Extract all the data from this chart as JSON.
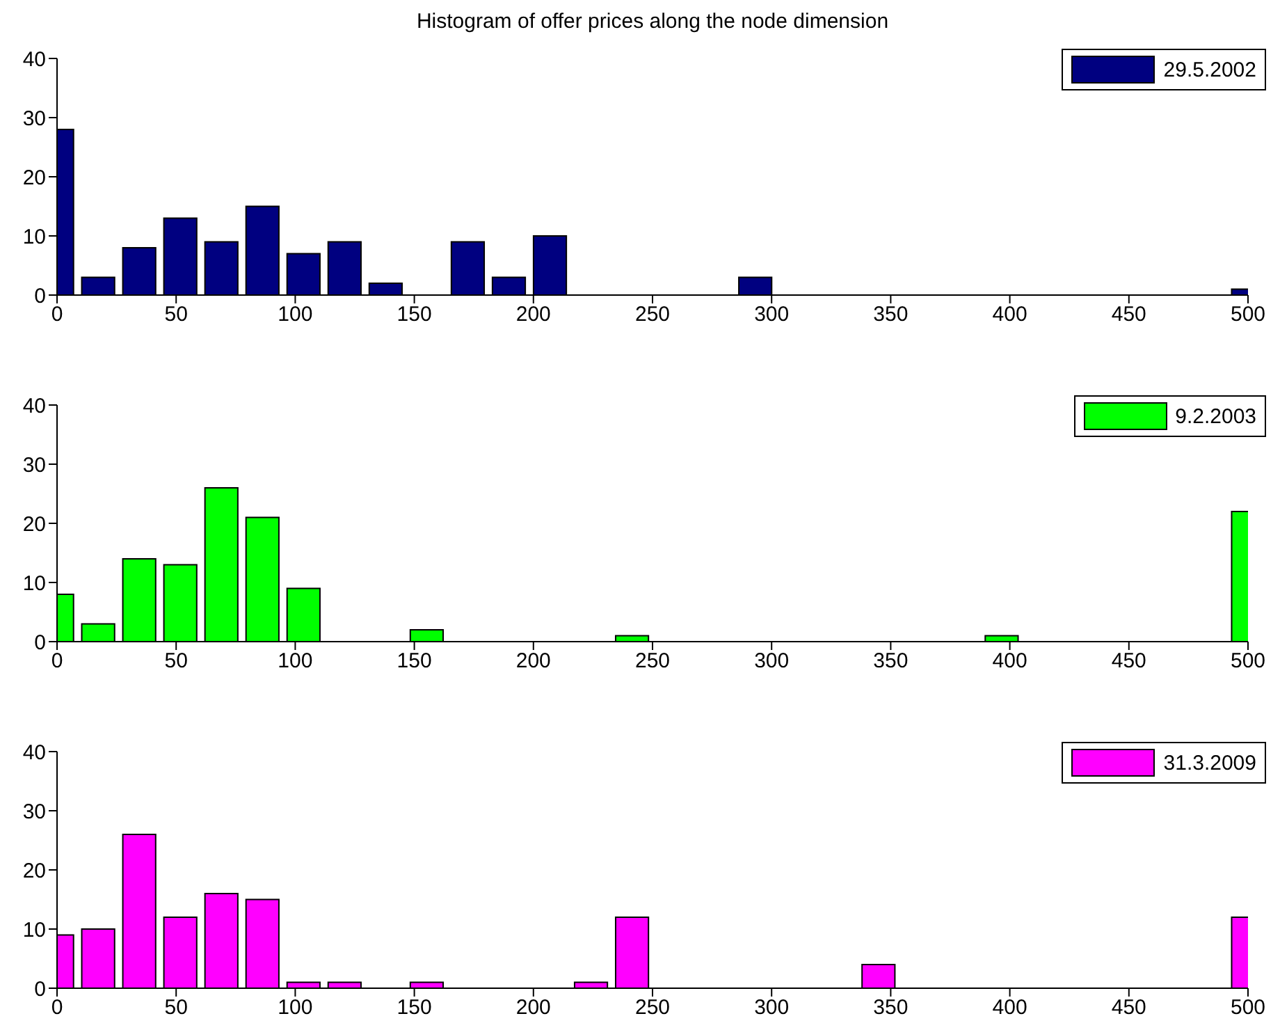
{
  "chart_data": [
    {
      "type": "bar",
      "title": "Histogram of offer prices along the node dimension",
      "x": [
        0,
        17.24,
        34.48,
        51.72,
        68.97,
        86.21,
        103.45,
        120.69,
        137.93,
        155.17,
        172.41,
        189.66,
        206.9,
        224.14,
        241.38,
        258.62,
        275.86,
        293.1,
        310.34,
        327.59,
        344.83,
        362.07,
        379.31,
        396.55,
        413.79,
        431.03,
        448.28,
        465.52,
        482.76,
        500
      ],
      "series": [
        {
          "name": "29.5.2002",
          "color": "#000080",
          "values": [
            28,
            3,
            8,
            13,
            9,
            15,
            7,
            9,
            2,
            0,
            9,
            3,
            10,
            0,
            0,
            0,
            0,
            3,
            0,
            0,
            0,
            0,
            0,
            0,
            0,
            0,
            0,
            0,
            0,
            1
          ]
        }
      ],
      "xlim": [
        0,
        500
      ],
      "xticks": [
        0,
        50,
        100,
        150,
        200,
        250,
        300,
        350,
        400,
        450,
        500
      ],
      "ylim": [
        0,
        40
      ],
      "yticks": [
        0,
        10,
        20,
        30,
        40
      ],
      "legend": "top right"
    },
    {
      "type": "bar",
      "x": [
        0,
        17.24,
        34.48,
        51.72,
        68.97,
        86.21,
        103.45,
        120.69,
        137.93,
        155.17,
        172.41,
        189.66,
        206.9,
        224.14,
        241.38,
        258.62,
        275.86,
        293.1,
        310.34,
        327.59,
        344.83,
        362.07,
        379.31,
        396.55,
        413.79,
        431.03,
        448.28,
        465.52,
        482.76,
        500
      ],
      "series": [
        {
          "name": "9.2.2003",
          "color": "#00ff00",
          "values": [
            8,
            3,
            14,
            13,
            26,
            21,
            9,
            0,
            0,
            2,
            0,
            0,
            0,
            0,
            1,
            0,
            0,
            0,
            0,
            0,
            0,
            0,
            0,
            1,
            0,
            0,
            0,
            0,
            0,
            22
          ]
        }
      ],
      "xlim": [
        0,
        500
      ],
      "xticks": [
        0,
        50,
        100,
        150,
        200,
        250,
        300,
        350,
        400,
        450,
        500
      ],
      "ylim": [
        0,
        40
      ],
      "yticks": [
        0,
        10,
        20,
        30,
        40
      ],
      "legend": "top right"
    },
    {
      "type": "bar",
      "x": [
        0,
        17.24,
        34.48,
        51.72,
        68.97,
        86.21,
        103.45,
        120.69,
        137.93,
        155.17,
        172.41,
        189.66,
        206.9,
        224.14,
        241.38,
        258.62,
        275.86,
        293.1,
        310.34,
        327.59,
        344.83,
        362.07,
        379.31,
        396.55,
        413.79,
        431.03,
        448.28,
        465.52,
        482.76,
        500
      ],
      "series": [
        {
          "name": "31.3.2009",
          "color": "#ff00ff",
          "values": [
            9,
            10,
            26,
            12,
            16,
            15,
            1,
            1,
            0,
            1,
            0,
            0,
            0,
            1,
            12,
            0,
            0,
            0,
            0,
            0,
            4,
            0,
            0,
            0,
            0,
            0,
            0,
            0,
            0,
            12
          ]
        }
      ],
      "xlim": [
        0,
        500
      ],
      "xticks": [
        0,
        50,
        100,
        150,
        200,
        250,
        300,
        350,
        400,
        450,
        500
      ],
      "ylim": [
        0,
        40
      ],
      "yticks": [
        0,
        10,
        20,
        30,
        40
      ],
      "legend": "top right"
    }
  ]
}
